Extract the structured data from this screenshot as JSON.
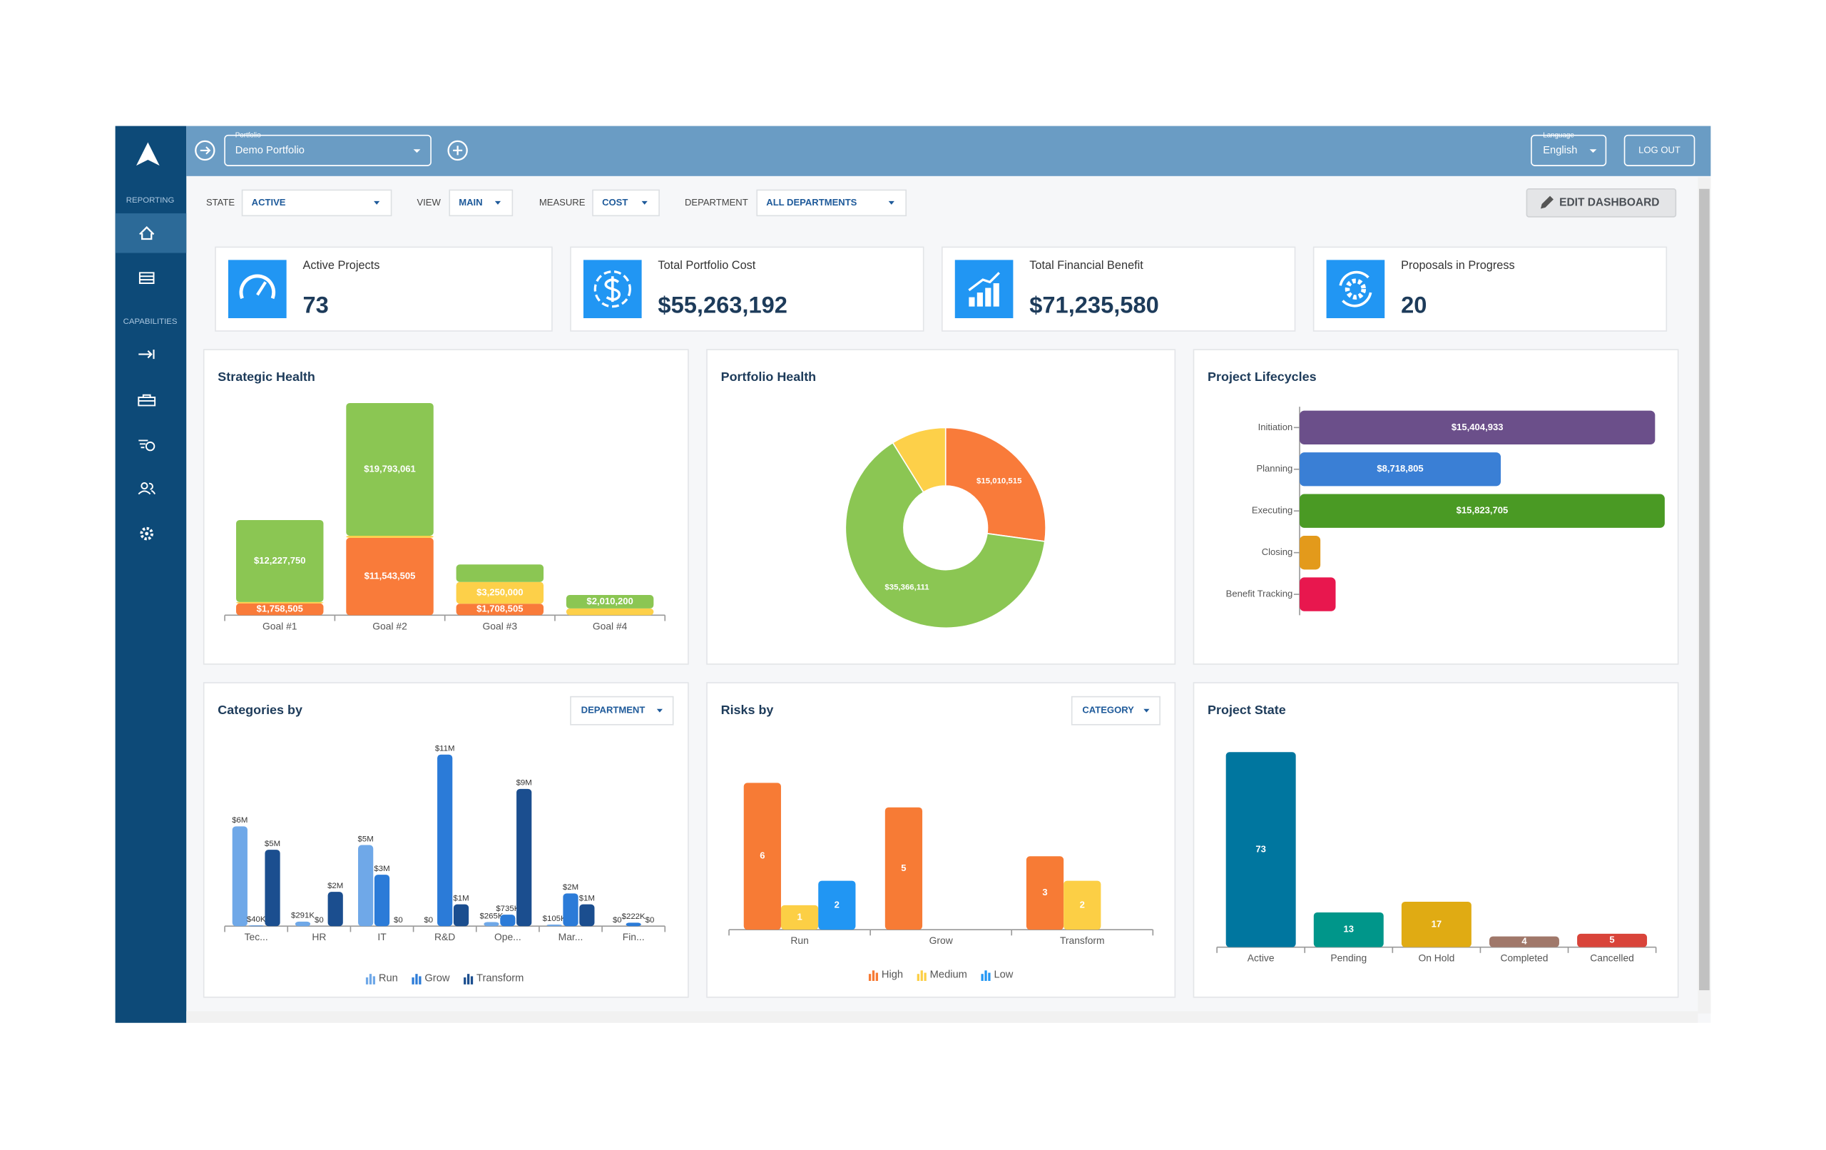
{
  "sidebar": {
    "sections": [
      "REPORTING",
      "CAPABILITIES"
    ]
  },
  "topbar": {
    "portfolio_label": "Portfolio",
    "portfolio": "Demo Portfolio",
    "language_label": "Language",
    "language": "English",
    "logout": "LOG OUT"
  },
  "filters": [
    {
      "label": "STATE",
      "value": "ACTIVE"
    },
    {
      "label": "VIEW",
      "value": "MAIN"
    },
    {
      "label": "MEASURE",
      "value": "COST"
    },
    {
      "label": "DEPARTMENT",
      "value": "ALL DEPARTMENTS"
    }
  ],
  "edit_button": "EDIT DASHBOARD",
  "kpis": [
    {
      "label": "Active Projects",
      "value": "73"
    },
    {
      "label": "Total Portfolio Cost",
      "value": "$55,263,192"
    },
    {
      "label": "Total Financial Benefit",
      "value": "$71,235,580"
    },
    {
      "label": "Proposals in Progress",
      "value": "20"
    }
  ],
  "chart_data": [
    {
      "type": "stacked_bar",
      "title": "Strategic Health",
      "categories": [
        "Goal #1",
        "Goal #2",
        "Goal #3",
        "Goal #4"
      ],
      "ylim": [
        0,
        33000000
      ],
      "series": [
        {
          "color": "#f97b3a",
          "values": [
            1758505,
            11543505,
            1708505,
            0
          ],
          "value_labels": [
            "$1,758,505",
            "$11,543,505",
            "$1,708,505",
            null
          ]
        },
        {
          "color": "#fdd049",
          "values": [
            200000,
            300000,
            3250000,
            1000000
          ],
          "value_labels": [
            null,
            null,
            "$3,250,000",
            null
          ]
        },
        {
          "color": "#8bc653",
          "values": [
            12227750,
            19793061,
            2600000,
            2010200
          ],
          "value_labels": [
            "$12,227,750",
            "$19,793,061",
            null,
            "$2,010,200"
          ]
        }
      ]
    },
    {
      "type": "donut",
      "title": "Portfolio Health",
      "values": [
        15010515,
        35366111,
        4886566
      ],
      "colors": [
        "#f97b3a",
        "#8bc653",
        "#fdd049"
      ],
      "value_labels": [
        "$15,010,515",
        "$35,366,111",
        null
      ]
    },
    {
      "type": "hbar",
      "title": "Project Lifecycles",
      "categories": [
        "Initiation",
        "Planning",
        "Executing",
        "Closing",
        "Benefit Tracking"
      ],
      "values": [
        15404933,
        8718805,
        15823705,
        900000,
        1560000
      ],
      "colors": [
        "#6b4f8a",
        "#3a7fd5",
        "#4a9a24",
        "#e39a1b",
        "#e8174e"
      ],
      "value_labels": [
        "$15,404,933",
        "$8,718,805",
        "$15,823,705",
        null,
        null
      ],
      "xlim": [
        0,
        16000000
      ]
    },
    {
      "type": "grouped_bar",
      "title": "Categories by",
      "control": "DEPARTMENT",
      "categories": [
        "Tec...",
        "HR",
        "IT",
        "R&D",
        "Ope...",
        "Mar...",
        "Fin..."
      ],
      "ylim": [
        0,
        11500000
      ],
      "legend": "bottom",
      "label_position": "outside",
      "series": [
        {
          "name": "Run",
          "color": "#6fa8e8",
          "values": [
            6400000,
            291000,
            5200000,
            0,
            265000,
            105000,
            0
          ],
          "value_labels": [
            "$6M",
            "$291K",
            "$5M",
            "$0",
            "$265K",
            "$105K",
            "$0"
          ]
        },
        {
          "name": "Grow",
          "color": "#2b7bd8",
          "values": [
            40000,
            0,
            3300000,
            11000000,
            735000,
            2100000,
            222000
          ],
          "value_labels": [
            "$40K",
            "$0",
            "$3M",
            "$11M",
            "$735K",
            "$2M",
            "$222K"
          ]
        },
        {
          "name": "Transform",
          "color": "#1b4e8f",
          "values": [
            4900000,
            2200000,
            0,
            1400000,
            8800000,
            1400000,
            0
          ],
          "value_labels": [
            "$5M",
            "$2M",
            "$0",
            "$1M",
            "$9M",
            "$1M",
            "$0"
          ]
        }
      ]
    },
    {
      "type": "grouped_bar",
      "title": "Risks by",
      "control": "CATEGORY",
      "categories": [
        "Run",
        "Grow",
        "Transform"
      ],
      "ylim": [
        0,
        6
      ],
      "legend": "bottom",
      "label_position": "inside",
      "series": [
        {
          "name": "High",
          "color": "#f77b35",
          "values": [
            6,
            5,
            3
          ]
        },
        {
          "name": "Medium",
          "color": "#fccf45",
          "values": [
            1,
            0,
            2
          ]
        },
        {
          "name": "Low",
          "color": "#2196f3",
          "values": [
            2,
            0,
            0
          ]
        }
      ]
    },
    {
      "type": "bar",
      "title": "Project State",
      "categories": [
        "Active",
        "Pending",
        "On Hold",
        "Completed",
        "Cancelled"
      ],
      "values": [
        73,
        13,
        17,
        4,
        5
      ],
      "colors": [
        "#00769f",
        "#00968a",
        "#e0ab13",
        "#a0786a",
        "#d9443a"
      ],
      "ylim": [
        0,
        75
      ],
      "label_position": "inside"
    }
  ]
}
